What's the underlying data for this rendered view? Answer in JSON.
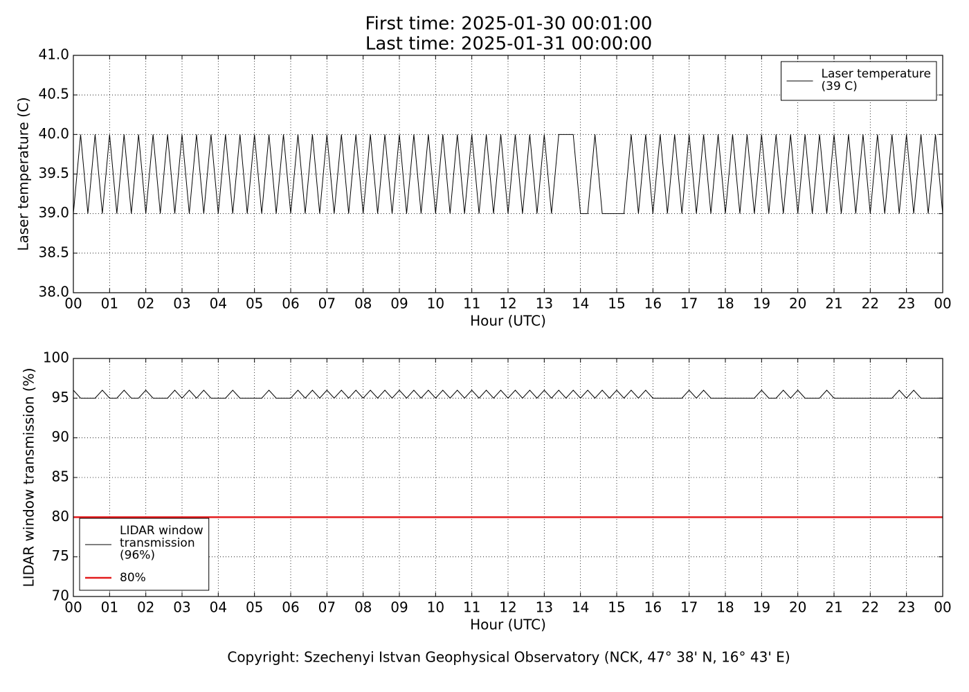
{
  "header": {
    "lines": [
      "First time: 2025-01-30 00:01:00",
      "Last time: 2025-01-31 00:00:00"
    ]
  },
  "footer": "Copyright: Szechenyi Istvan Geophysical Observatory (NCK, 47° 38' N, 16° 43' E)",
  "chart_data": [
    {
      "type": "line",
      "x_label": "Hour (UTC)",
      "y_label": "Laser temperature (C)",
      "x": [
        0,
        0.2,
        0.4,
        0.6,
        0.8,
        1,
        1.2,
        1.4,
        1.6,
        1.8,
        2,
        2.2,
        2.4,
        2.6,
        2.8,
        3,
        3.2,
        3.4,
        3.6,
        3.8,
        4,
        4.2,
        4.4,
        4.6,
        4.8,
        5,
        5.2,
        5.4,
        5.6,
        5.8,
        6,
        6.2,
        6.4,
        6.6,
        6.8,
        7,
        7.2,
        7.4,
        7.6,
        7.8,
        8,
        8.2,
        8.4,
        8.6,
        8.8,
        9,
        9.2,
        9.4,
        9.6,
        9.8,
        10,
        10.2,
        10.4,
        10.6,
        10.8,
        11,
        11.2,
        11.4,
        11.6,
        11.8,
        12,
        12.2,
        12.4,
        12.6,
        12.8,
        13,
        13.2,
        13.4,
        13.6,
        13.8,
        14,
        14.2,
        14.4,
        14.6,
        14.8,
        15,
        15.2,
        15.4,
        15.6,
        15.8,
        16,
        16.2,
        16.4,
        16.6,
        16.8,
        17,
        17.2,
        17.4,
        17.6,
        17.8,
        18,
        18.2,
        18.4,
        18.6,
        18.8,
        19,
        19.2,
        19.4,
        19.6,
        19.8,
        20,
        20.2,
        20.4,
        20.6,
        20.8,
        21,
        21.2,
        21.4,
        21.6,
        21.8,
        22,
        22.2,
        22.4,
        22.6,
        22.8,
        23,
        23.2,
        23.4,
        23.6,
        23.8,
        24
      ],
      "series": [
        {
          "name": "Laser temperature\n(39 C)",
          "color": "#000000",
          "values": [
            39,
            40,
            39,
            40,
            39,
            40,
            39,
            40,
            39,
            40,
            39,
            40,
            39,
            40,
            39,
            40,
            39,
            40,
            39,
            40,
            39,
            40,
            39,
            40,
            39,
            40,
            39,
            40,
            39,
            40,
            39,
            40,
            39,
            40,
            39,
            40,
            39,
            40,
            39,
            40,
            39,
            40,
            39,
            40,
            39,
            40,
            39,
            40,
            39,
            40,
            39,
            40,
            39,
            40,
            39,
            40,
            39,
            40,
            39,
            40,
            39,
            40,
            39,
            40,
            39,
            40,
            39,
            40,
            40,
            40,
            39,
            39,
            40,
            39,
            39,
            39,
            39,
            40,
            39,
            40,
            39,
            40,
            39,
            40,
            39,
            40,
            39,
            40,
            39,
            40,
            39,
            40,
            39,
            40,
            39,
            40,
            39,
            40,
            39,
            40,
            39,
            40,
            39,
            40,
            39,
            40,
            39,
            40,
            39,
            40,
            39,
            40,
            39,
            40,
            39,
            40,
            39,
            40,
            39,
            40,
            39
          ]
        }
      ],
      "xlim": [
        0,
        24
      ],
      "xticks": [
        {
          "value": 0,
          "label": "00"
        },
        {
          "value": 1,
          "label": "01"
        },
        {
          "value": 2,
          "label": "02"
        },
        {
          "value": 3,
          "label": "03"
        },
        {
          "value": 4,
          "label": "04"
        },
        {
          "value": 5,
          "label": "05"
        },
        {
          "value": 6,
          "label": "06"
        },
        {
          "value": 7,
          "label": "07"
        },
        {
          "value": 8,
          "label": "08"
        },
        {
          "value": 9,
          "label": "09"
        },
        10,
        11,
        12,
        13,
        14,
        15,
        16,
        17,
        18,
        19,
        20,
        21,
        22,
        23,
        {
          "value": 24,
          "label": "00"
        }
      ],
      "ylim": [
        38,
        41
      ],
      "yticks": [
        {
          "value": 38,
          "label": "38.0"
        },
        38.5,
        {
          "value": 39,
          "label": "39.0"
        },
        39.5,
        {
          "value": 40,
          "label": "40.0"
        },
        40.5,
        {
          "value": 41,
          "label": "41.0"
        }
      ],
      "grid": true,
      "legend": "upper right"
    },
    {
      "type": "line",
      "x_label": "Hour (UTC)",
      "y_label": "LIDAR window transmission (%)",
      "x": [
        0,
        0.2,
        0.4,
        0.6,
        0.8,
        1,
        1.2,
        1.4,
        1.6,
        1.8,
        2,
        2.2,
        2.4,
        2.6,
        2.8,
        3,
        3.2,
        3.4,
        3.6,
        3.8,
        4,
        4.2,
        4.4,
        4.6,
        4.8,
        5,
        5.2,
        5.4,
        5.6,
        5.8,
        6,
        6.2,
        6.4,
        6.6,
        6.8,
        7,
        7.2,
        7.4,
        7.6,
        7.8,
        8,
        8.2,
        8.4,
        8.6,
        8.8,
        9,
        9.2,
        9.4,
        9.6,
        9.8,
        10,
        10.2,
        10.4,
        10.6,
        10.8,
        11,
        11.2,
        11.4,
        11.6,
        11.8,
        12,
        12.2,
        12.4,
        12.6,
        12.8,
        13,
        13.2,
        13.4,
        13.6,
        13.8,
        14,
        14.2,
        14.4,
        14.6,
        14.8,
        15,
        15.2,
        15.4,
        15.6,
        15.8,
        16,
        16.2,
        16.4,
        16.6,
        16.8,
        17,
        17.2,
        17.4,
        17.6,
        17.8,
        18,
        18.2,
        18.4,
        18.6,
        18.8,
        19,
        19.2,
        19.4,
        19.6,
        19.8,
        20,
        20.2,
        20.4,
        20.6,
        20.8,
        21,
        21.2,
        21.4,
        21.6,
        21.8,
        22,
        22.2,
        22.4,
        22.6,
        22.8,
        23,
        23.2,
        23.4,
        23.6,
        23.8,
        24
      ],
      "series": [
        {
          "name": "LIDAR window\ntransmission\n(96%)",
          "color": "#000000",
          "values": [
            96,
            95,
            95,
            95,
            96,
            95,
            95,
            96,
            95,
            95,
            96,
            95,
            95,
            95,
            96,
            95,
            96,
            95,
            96,
            95,
            95,
            95,
            96,
            95,
            95,
            95,
            95,
            96,
            95,
            95,
            95,
            96,
            95,
            96,
            95,
            96,
            95,
            96,
            95,
            96,
            95,
            96,
            95,
            96,
            95,
            96,
            95,
            96,
            95,
            96,
            95,
            96,
            95,
            96,
            95,
            96,
            95,
            96,
            95,
            96,
            95,
            96,
            95,
            96,
            95,
            96,
            95,
            96,
            95,
            96,
            95,
            96,
            95,
            96,
            95,
            96,
            95,
            96,
            95,
            96,
            95,
            95,
            95,
            95,
            95,
            96,
            95,
            96,
            95,
            95,
            95,
            95,
            95,
            95,
            95,
            96,
            95,
            95,
            96,
            95,
            96,
            95,
            95,
            95,
            96,
            95,
            95,
            95,
            95,
            95,
            95,
            95,
            95,
            95,
            96,
            95,
            96,
            95,
            95,
            95,
            95
          ]
        }
      ],
      "hline": {
        "name": "80%",
        "value": 80,
        "color": "#e31a1c"
      },
      "xlim": [
        0,
        24
      ],
      "xticks": [
        {
          "value": 0,
          "label": "00"
        },
        {
          "value": 1,
          "label": "01"
        },
        {
          "value": 2,
          "label": "02"
        },
        {
          "value": 3,
          "label": "03"
        },
        {
          "value": 4,
          "label": "04"
        },
        {
          "value": 5,
          "label": "05"
        },
        {
          "value": 6,
          "label": "06"
        },
        {
          "value": 7,
          "label": "07"
        },
        {
          "value": 8,
          "label": "08"
        },
        {
          "value": 9,
          "label": "09"
        },
        10,
        11,
        12,
        13,
        14,
        15,
        16,
        17,
        18,
        19,
        20,
        21,
        22,
        23,
        {
          "value": 24,
          "label": "00"
        }
      ],
      "ylim": [
        70,
        100
      ],
      "yticks": [
        70,
        75,
        80,
        85,
        90,
        95,
        100
      ],
      "grid": true,
      "legend": "lower left"
    }
  ]
}
